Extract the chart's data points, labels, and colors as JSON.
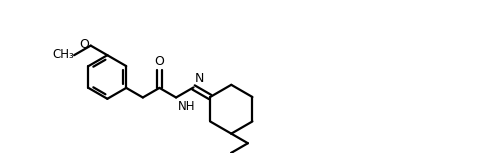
{
  "bg": "#ffffff",
  "lc": "#000000",
  "lw": 1.6,
  "bl": 0.44,
  "bR": 0.5,
  "chR": 0.56,
  "fig_w": 4.92,
  "fig_h": 1.54,
  "dpi": 100,
  "xlim": [
    0,
    10
  ],
  "ylim": [
    -0.3,
    3.2
  ]
}
